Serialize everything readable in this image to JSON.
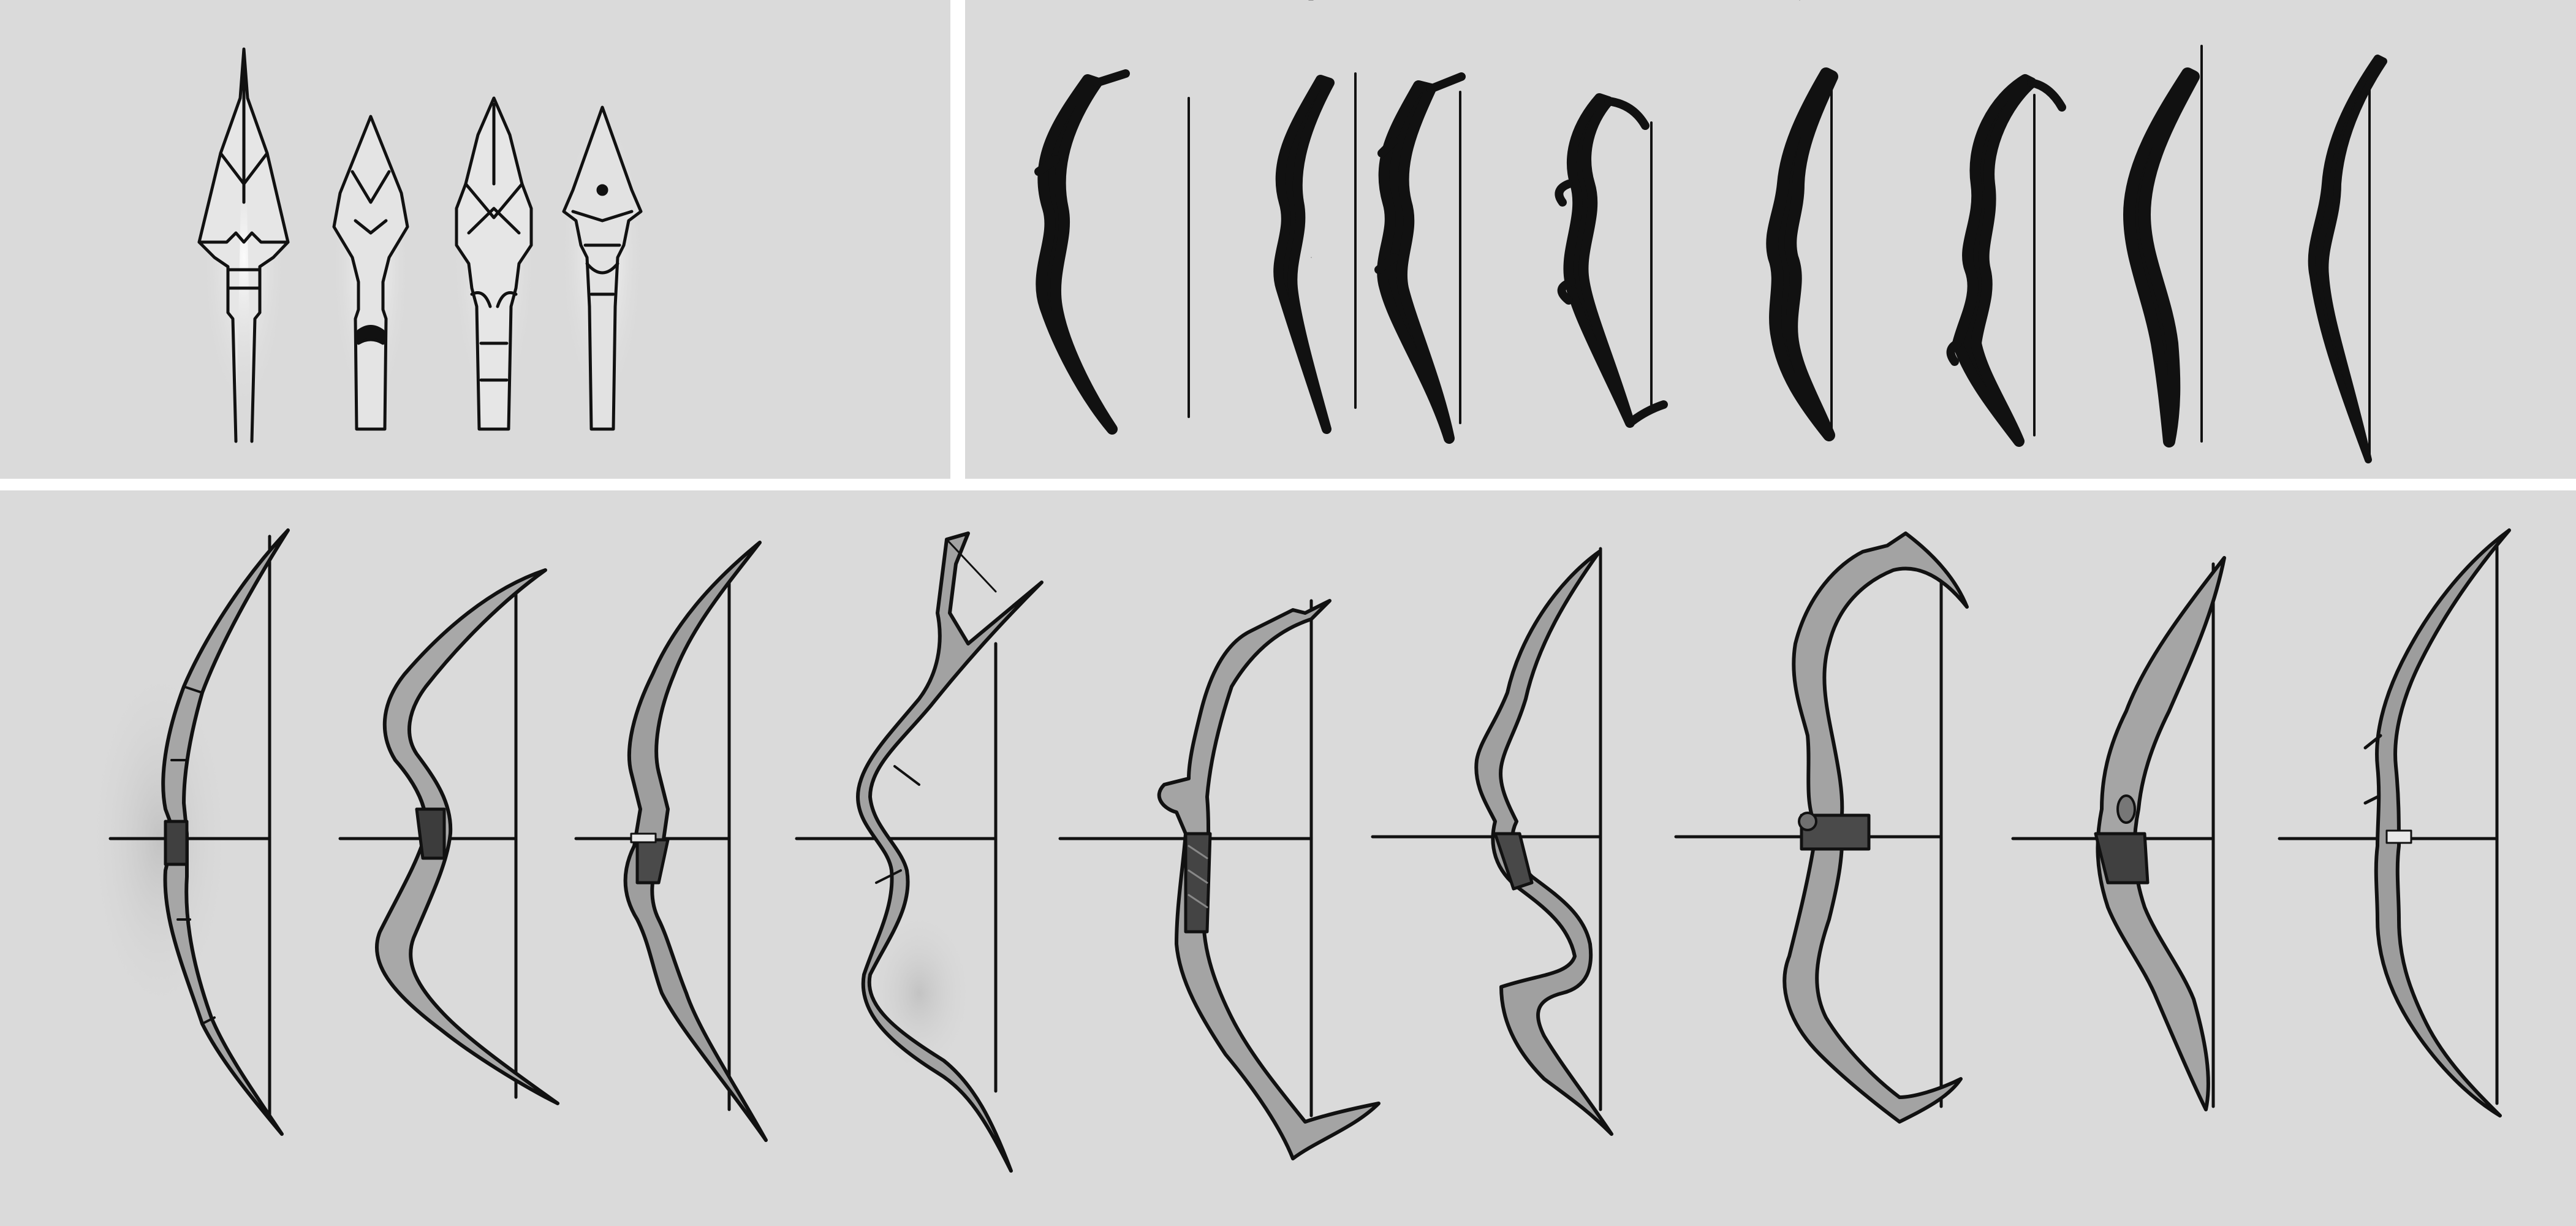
{
  "sheet": {
    "background": "#ffffff",
    "panel_color": "#dadada",
    "ink_color": "#111111",
    "fill_light": "#b0b0b0",
    "fill_mid": "#8c8c8c",
    "fill_dark": "#505050"
  },
  "panels": [
    {
      "id": "arrowheads",
      "content": "arrowhead-sketches",
      "count": 4
    },
    {
      "id": "silhouettes",
      "content": "bow-silhouette-thumbnails",
      "count": 8
    },
    {
      "id": "bows",
      "content": "rendered-bow-designs",
      "count": 9
    }
  ]
}
